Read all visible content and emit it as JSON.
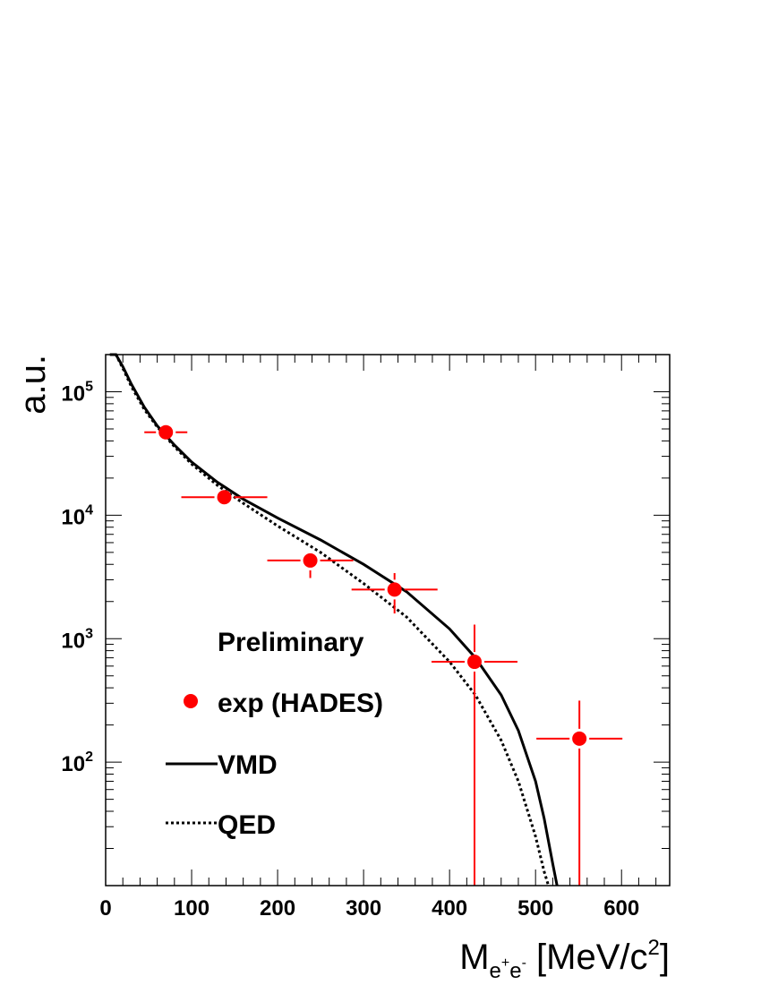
{
  "chart_data": {
    "type": "scatter",
    "title": "",
    "xlabel": "M",
    "xlabel_sub": "e",
    "xlabel_sup1": "+",
    "xlabel_sub2": "e",
    "xlabel_sup2": "-",
    "xlabel_units": " [MeV/c",
    "xlabel_units_sup": "2",
    "xlabel_units_close": "]",
    "ylabel": "a.u.",
    "xlim": [
      0,
      656
    ],
    "ylim": [
      10,
      200000
    ],
    "y_scale": "log",
    "x_ticks": [
      0,
      100,
      200,
      300,
      400,
      500,
      600
    ],
    "x_tick_labels": [
      "0",
      "100",
      "200",
      "300",
      "400",
      "500",
      "600"
    ],
    "y_ticks": [
      100,
      1000,
      10000,
      100000
    ],
    "y_tick_base": "10",
    "y_tick_exponents": [
      "2",
      "3",
      "4",
      "5"
    ],
    "grid": false,
    "legend_position": "bottom-left",
    "annotation": "Preliminary",
    "colors": {
      "exp": "#ff0000",
      "vmd": "#000000",
      "qed": "#000000"
    },
    "series": [
      {
        "name": "exp (HADES)",
        "kind": "points",
        "x": [
          70,
          138,
          238,
          336,
          429,
          551
        ],
        "y": [
          47000,
          14000,
          4300,
          2500,
          650,
          155
        ],
        "x_err": [
          25,
          50,
          50,
          50,
          50,
          50
        ],
        "y_err_low": [
          0,
          0,
          1200,
          900,
          640,
          145
        ],
        "y_err_high": [
          0,
          0,
          0,
          900,
          650,
          160
        ]
      },
      {
        "name": "VMD",
        "kind": "line",
        "style": "solid",
        "x": [
          5,
          12,
          20,
          30,
          45,
          60,
          80,
          100,
          130,
          160,
          200,
          250,
          300,
          350,
          400,
          430,
          460,
          480,
          500,
          510,
          520,
          525
        ],
        "y": [
          200000,
          200000,
          160000,
          115000,
          75000,
          53000,
          37000,
          27000,
          18500,
          13500,
          9500,
          6300,
          4000,
          2400,
          1200,
          700,
          350,
          180,
          70,
          35,
          15,
          10
        ]
      },
      {
        "name": "QED",
        "kind": "line",
        "style": "dotted",
        "x": [
          5,
          12,
          20,
          30,
          45,
          60,
          80,
          100,
          130,
          160,
          200,
          250,
          300,
          350,
          400,
          430,
          460,
          480,
          500,
          510,
          515
        ],
        "y": [
          200000,
          200000,
          155000,
          110000,
          72000,
          52000,
          36000,
          26000,
          17500,
          12500,
          8200,
          5000,
          2800,
          1500,
          650,
          350,
          150,
          70,
          25,
          13,
          10
        ]
      }
    ]
  }
}
